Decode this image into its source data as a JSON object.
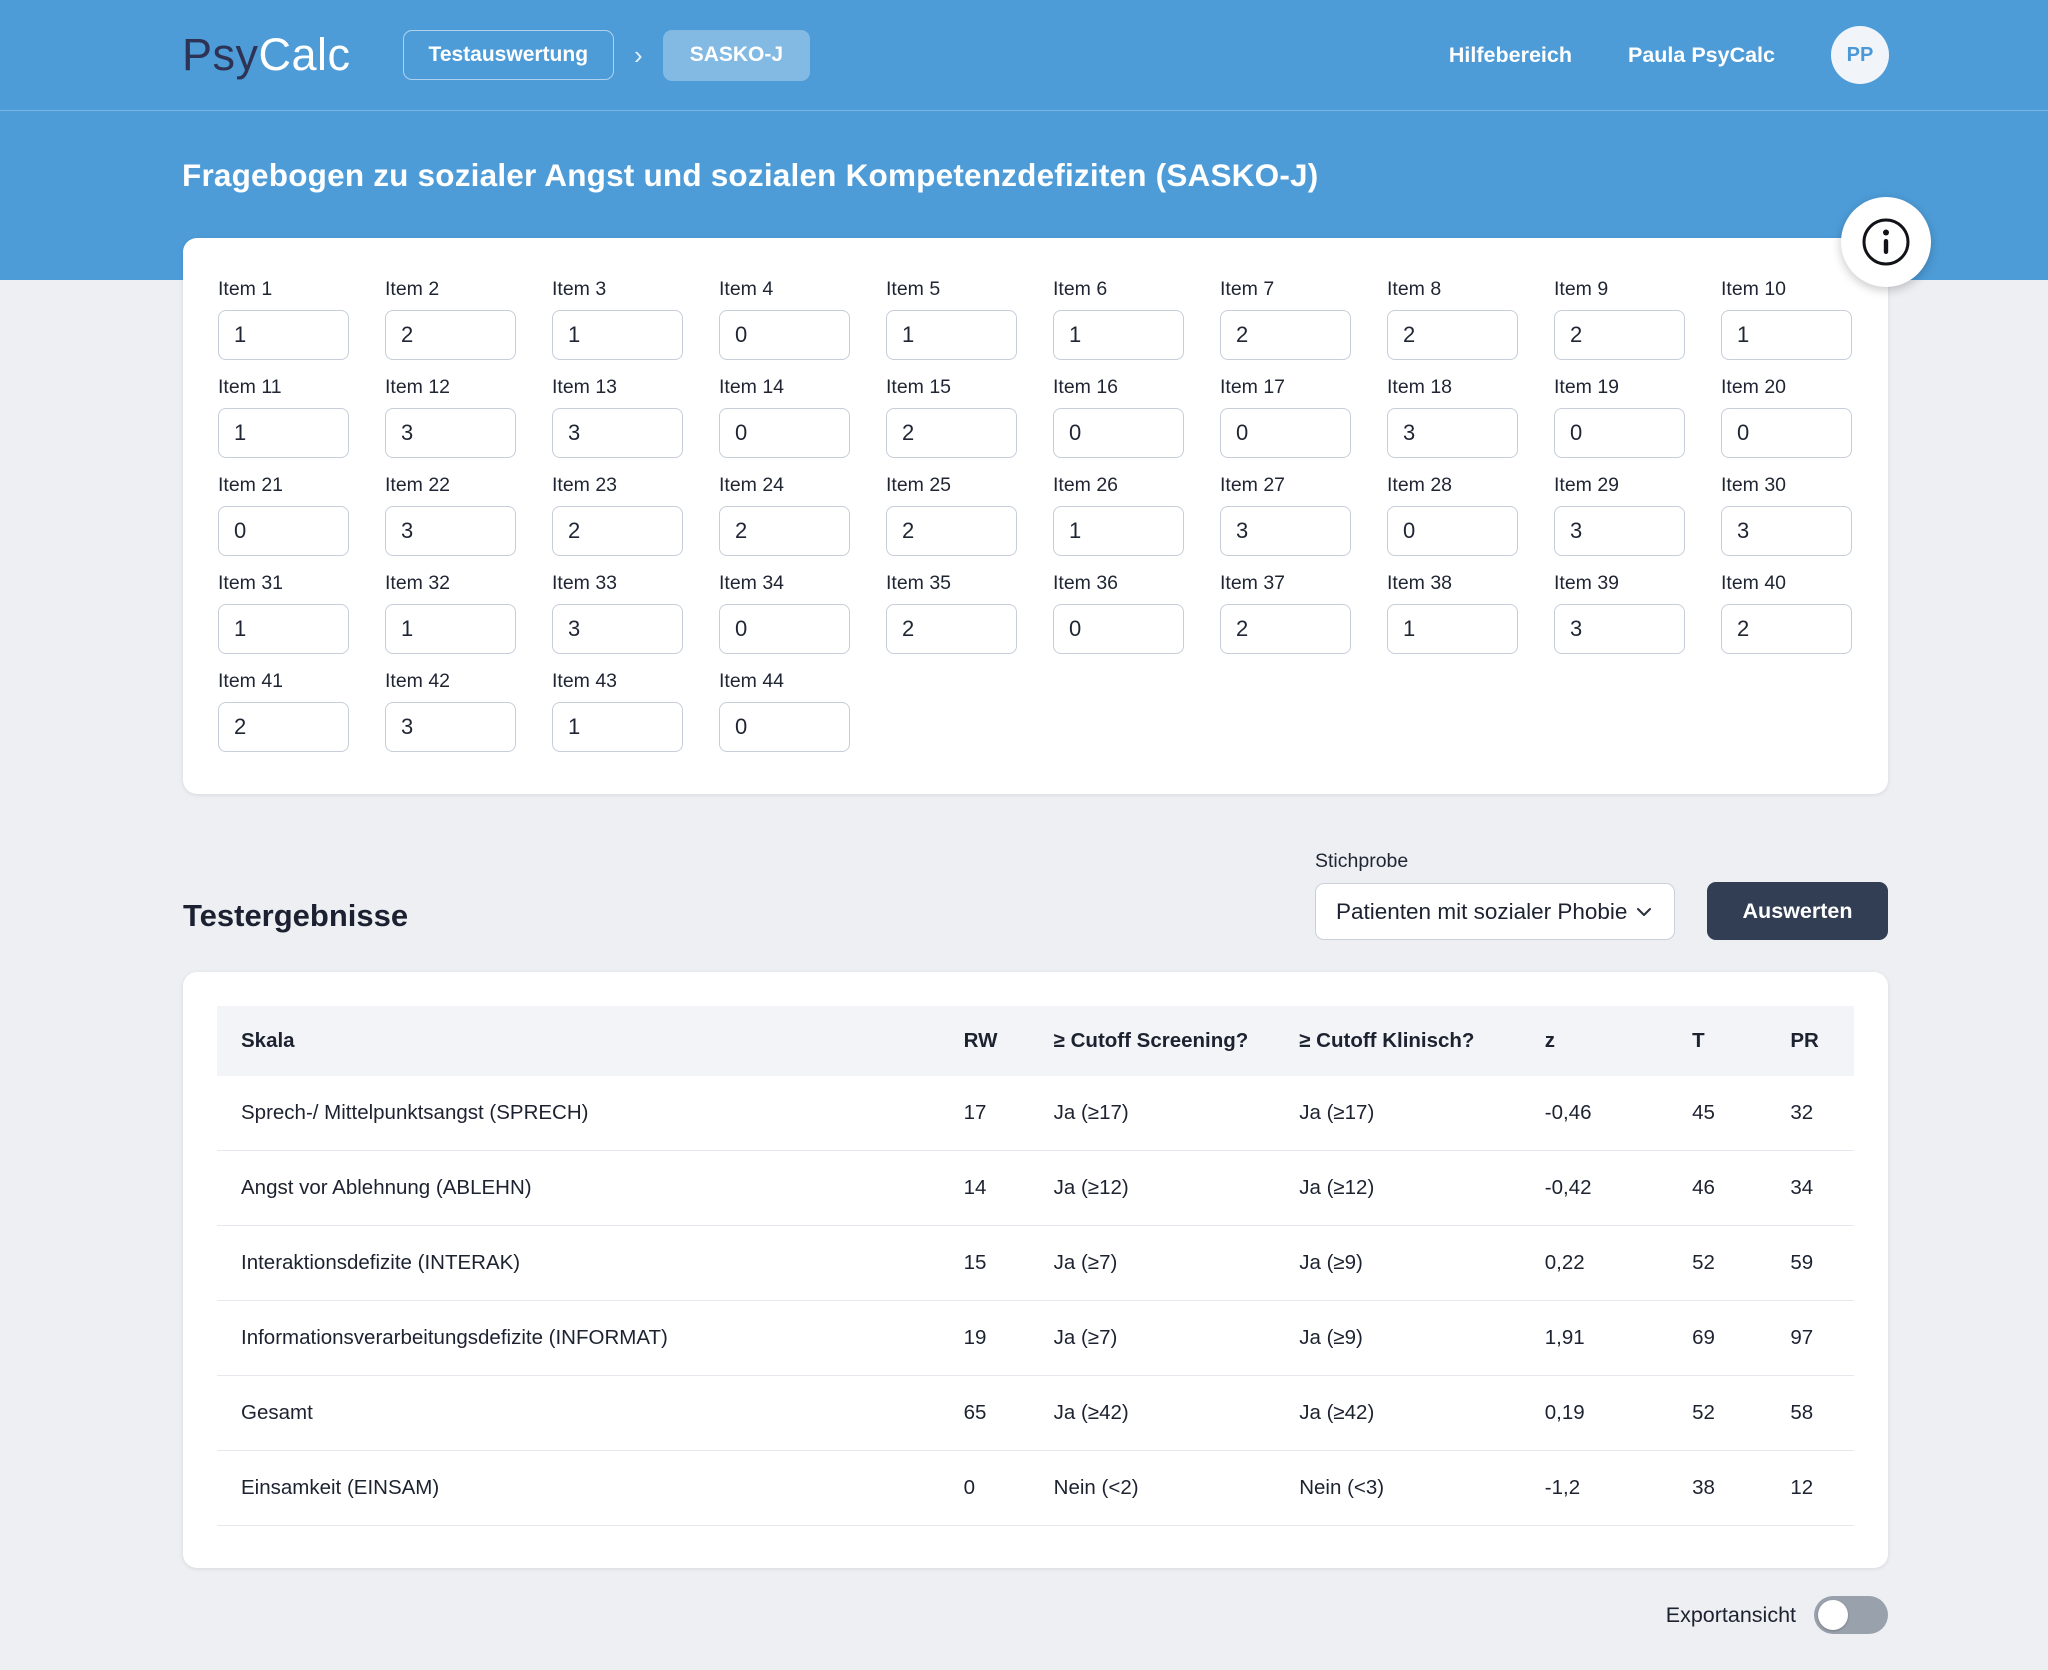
{
  "header": {
    "logo_part1": "Psy",
    "logo_part2": "Calc",
    "breadcrumb": {
      "level1": "Testauswertung",
      "separator": "›",
      "level2": "SASKO-J"
    },
    "help_link": "Hilfebereich",
    "user_name": "Paula PsyCalc",
    "avatar_initials": "PP"
  },
  "hero": {
    "title": "Fragebogen zu sozialer Angst und sozialen Kompetenzdefiziten (SASKO-J)"
  },
  "info_icon": "info-circle",
  "items": [
    {
      "label": "Item 1",
      "value": "1"
    },
    {
      "label": "Item 2",
      "value": "2"
    },
    {
      "label": "Item 3",
      "value": "1"
    },
    {
      "label": "Item 4",
      "value": "0"
    },
    {
      "label": "Item 5",
      "value": "1"
    },
    {
      "label": "Item 6",
      "value": "1"
    },
    {
      "label": "Item 7",
      "value": "2"
    },
    {
      "label": "Item 8",
      "value": "2"
    },
    {
      "label": "Item 9",
      "value": "2"
    },
    {
      "label": "Item 10",
      "value": "1"
    },
    {
      "label": "Item 11",
      "value": "1"
    },
    {
      "label": "Item 12",
      "value": "3"
    },
    {
      "label": "Item 13",
      "value": "3"
    },
    {
      "label": "Item 14",
      "value": "0"
    },
    {
      "label": "Item 15",
      "value": "2"
    },
    {
      "label": "Item 16",
      "value": "0"
    },
    {
      "label": "Item 17",
      "value": "0"
    },
    {
      "label": "Item 18",
      "value": "3"
    },
    {
      "label": "Item 19",
      "value": "0"
    },
    {
      "label": "Item 20",
      "value": "0"
    },
    {
      "label": "Item 21",
      "value": "0"
    },
    {
      "label": "Item 22",
      "value": "3"
    },
    {
      "label": "Item 23",
      "value": "2"
    },
    {
      "label": "Item 24",
      "value": "2"
    },
    {
      "label": "Item 25",
      "value": "2"
    },
    {
      "label": "Item 26",
      "value": "1"
    },
    {
      "label": "Item 27",
      "value": "3"
    },
    {
      "label": "Item 28",
      "value": "0"
    },
    {
      "label": "Item 29",
      "value": "3"
    },
    {
      "label": "Item 30",
      "value": "3"
    },
    {
      "label": "Item 31",
      "value": "1"
    },
    {
      "label": "Item 32",
      "value": "1"
    },
    {
      "label": "Item 33",
      "value": "3"
    },
    {
      "label": "Item 34",
      "value": "0"
    },
    {
      "label": "Item 35",
      "value": "2"
    },
    {
      "label": "Item 36",
      "value": "0"
    },
    {
      "label": "Item 37",
      "value": "2"
    },
    {
      "label": "Item 38",
      "value": "1"
    },
    {
      "label": "Item 39",
      "value": "3"
    },
    {
      "label": "Item 40",
      "value": "2"
    },
    {
      "label": "Item 41",
      "value": "2"
    },
    {
      "label": "Item 42",
      "value": "3"
    },
    {
      "label": "Item 43",
      "value": "1"
    },
    {
      "label": "Item 44",
      "value": "0"
    }
  ],
  "results": {
    "heading": "Testergebnisse",
    "sample_label": "Stichprobe",
    "sample_value": "Patienten mit sozialer Phobie",
    "evaluate_button": "Auswerten",
    "table": {
      "columns": [
        "Skala",
        "RW",
        "≥ Cutoff Screening?",
        "≥ Cutoff Klinisch?",
        "z",
        "T",
        "PR"
      ],
      "rows": [
        {
          "skala": "Sprech-/ Mittelpunktsangst (SPRECH)",
          "rw": "17",
          "cutoff_screening": "Ja (≥17)",
          "cutoff_klinisch": "Ja (≥17)",
          "z": "-0,46",
          "t": "45",
          "pr": "32"
        },
        {
          "skala": "Angst vor Ablehnung (ABLEHN)",
          "rw": "14",
          "cutoff_screening": "Ja (≥12)",
          "cutoff_klinisch": "Ja (≥12)",
          "z": "-0,42",
          "t": "46",
          "pr": "34"
        },
        {
          "skala": "Interaktionsdefizite (INTERAK)",
          "rw": "15",
          "cutoff_screening": "Ja (≥7)",
          "cutoff_klinisch": "Ja (≥9)",
          "z": "0,22",
          "t": "52",
          "pr": "59"
        },
        {
          "skala": "Informationsverarbeitungsdefizite (INFORMAT)",
          "rw": "19",
          "cutoff_screening": "Ja (≥7)",
          "cutoff_klinisch": "Ja (≥9)",
          "z": "1,91",
          "t": "69",
          "pr": "97"
        },
        {
          "skala": "Gesamt",
          "rw": "65",
          "cutoff_screening": "Ja (≥42)",
          "cutoff_klinisch": "Ja (≥42)",
          "z": "0,19",
          "t": "52",
          "pr": "58"
        },
        {
          "skala": "Einsamkeit (EINSAM)",
          "rw": "0",
          "cutoff_screening": "Nein (<2)",
          "cutoff_klinisch": "Nein (<3)",
          "z": "-1,2",
          "t": "38",
          "pr": "12"
        }
      ]
    }
  },
  "footer": {
    "export_label": "Exportansicht",
    "export_toggle_on": false
  },
  "colors": {
    "header_blue": "#4d9cd8",
    "dark_button": "#323e53",
    "page_background": "#edeff3",
    "toggle_off": "#99a1ac",
    "avatar_text_blue": "#4a98d6",
    "logo_navy": "#2e3355"
  }
}
